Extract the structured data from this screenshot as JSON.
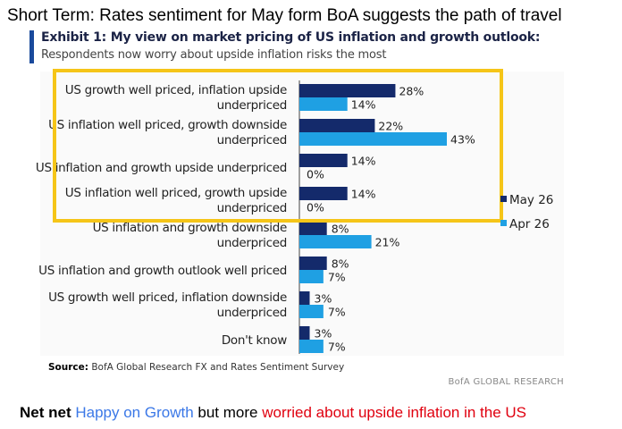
{
  "headline": "Short Term: Rates sentiment for May form BoA suggests the path of travel",
  "exhibit": {
    "title": "Exhibit 1: My view on market pricing of US inflation and growth outlook:",
    "subtitle": "Respondents now worry about upside inflation risks the most",
    "source_label": "Source:",
    "source_text": " BofA Global Research FX and Rates Sentiment Survey",
    "brand": "BofA GLOBAL RESEARCH"
  },
  "net_net": {
    "bold": "Net net",
    "blue": "Happy on Growth",
    "black": "but more",
    "red": "worried about upside inflation in the US"
  },
  "colors": {
    "may": "#142a6b",
    "apr": "#1fa0e3",
    "highlight": "#f5c518",
    "headline_blue": "#3b78e7",
    "headline_red": "#e0000f"
  },
  "chart_data": {
    "type": "bar",
    "orientation": "horizontal",
    "categories": [
      [
        "US growth well priced, inflation upside",
        "underpriced"
      ],
      [
        "US inflation well priced, growth downside",
        "underpriced"
      ],
      [
        "US inflation and growth upside underpriced"
      ],
      [
        "US inflation well priced, growth upside",
        "underpriced"
      ],
      [
        "US inflation and growth downside",
        "underpriced"
      ],
      [
        "US inflation and growth outlook well priced"
      ],
      [
        "US growth well priced, inflation downside",
        "underpriced"
      ],
      [
        "Don't know"
      ]
    ],
    "series": [
      {
        "name": "May 26",
        "values": [
          28,
          22,
          14,
          14,
          8,
          8,
          3,
          3
        ]
      },
      {
        "name": "Apr 26",
        "values": [
          14,
          43,
          0,
          0,
          21,
          7,
          7,
          7
        ]
      }
    ],
    "value_suffix": "%",
    "xlim": [
      0,
      50
    ],
    "legend_position": "right",
    "highlight_categories": [
      0,
      1,
      2,
      3
    ]
  }
}
